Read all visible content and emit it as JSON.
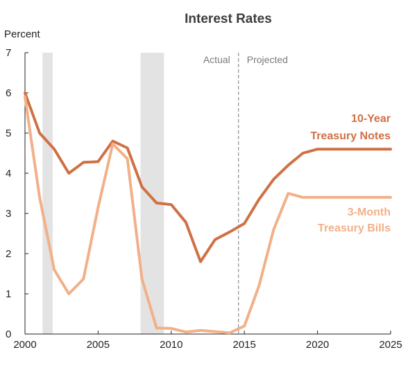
{
  "chart_data": {
    "type": "line",
    "title": "Interest Rates",
    "ylabel": "Percent",
    "xlabel": "",
    "xlim": [
      2000,
      2025
    ],
    "ylim": [
      0,
      7
    ],
    "x_ticks": [
      2000,
      2005,
      2010,
      2015,
      2020,
      2025
    ],
    "y_ticks": [
      0,
      1,
      2,
      3,
      4,
      5,
      6,
      7
    ],
    "grid": false,
    "recession_bands": [
      [
        2001.2,
        2001.9
      ],
      [
        2007.9,
        2009.5
      ]
    ],
    "divider_x": 2014.6,
    "phase_labels": {
      "left": "Actual",
      "right": "Projected"
    },
    "series": [
      {
        "name": "10-Year Treasury Notes",
        "label_lines": [
          "10-Year",
          "Treasury Notes"
        ],
        "color": "#cf7145",
        "x": [
          2000,
          2001,
          2002,
          2003,
          2004,
          2005,
          2006,
          2007,
          2008,
          2009,
          2010,
          2011,
          2012,
          2013,
          2014,
          2015,
          2016,
          2017,
          2018,
          2019,
          2020,
          2021,
          2022,
          2023,
          2024,
          2025
        ],
        "values": [
          6.0,
          5.0,
          4.6,
          4.0,
          4.27,
          4.29,
          4.8,
          4.63,
          3.66,
          3.26,
          3.22,
          2.78,
          1.8,
          2.35,
          2.54,
          2.75,
          3.35,
          3.85,
          4.2,
          4.5,
          4.6,
          4.6,
          4.6,
          4.6,
          4.6,
          4.6
        ]
      },
      {
        "name": "3-Month Treasury Bills",
        "label_lines": [
          "3-Month",
          "Treasury Bills"
        ],
        "color": "#f2b088",
        "x": [
          2000,
          2001,
          2002,
          2003,
          2004,
          2005,
          2006,
          2007,
          2008,
          2009,
          2010,
          2011,
          2012,
          2013,
          2014,
          2015,
          2016,
          2017,
          2018,
          2019,
          2020,
          2021,
          2022,
          2023,
          2024,
          2025
        ],
        "values": [
          5.9,
          3.4,
          1.6,
          1.0,
          1.37,
          3.15,
          4.73,
          4.36,
          1.37,
          0.15,
          0.14,
          0.05,
          0.09,
          0.06,
          0.03,
          0.2,
          1.2,
          2.6,
          3.5,
          3.4,
          3.4,
          3.4,
          3.4,
          3.4,
          3.4,
          3.4
        ]
      }
    ]
  }
}
